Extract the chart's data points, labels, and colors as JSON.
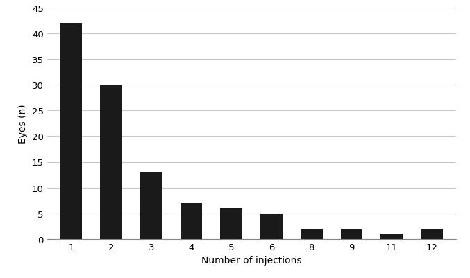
{
  "categories": [
    "1",
    "2",
    "3",
    "4",
    "5",
    "6",
    "8",
    "9",
    "11",
    "12"
  ],
  "values": [
    42,
    30,
    13,
    7,
    6,
    5,
    2,
    2,
    1,
    2
  ],
  "bar_color": "#1a1a1a",
  "xlabel": "Number of injections",
  "ylabel": "Eyes (n)",
  "ylim": [
    0,
    45
  ],
  "yticks": [
    0,
    5,
    10,
    15,
    20,
    25,
    30,
    35,
    40,
    45
  ],
  "background_color": "#ffffff",
  "grid_color": "#c8c8c8",
  "bar_width": 0.55,
  "xlabel_fontsize": 10,
  "ylabel_fontsize": 10,
  "tick_fontsize": 9.5
}
